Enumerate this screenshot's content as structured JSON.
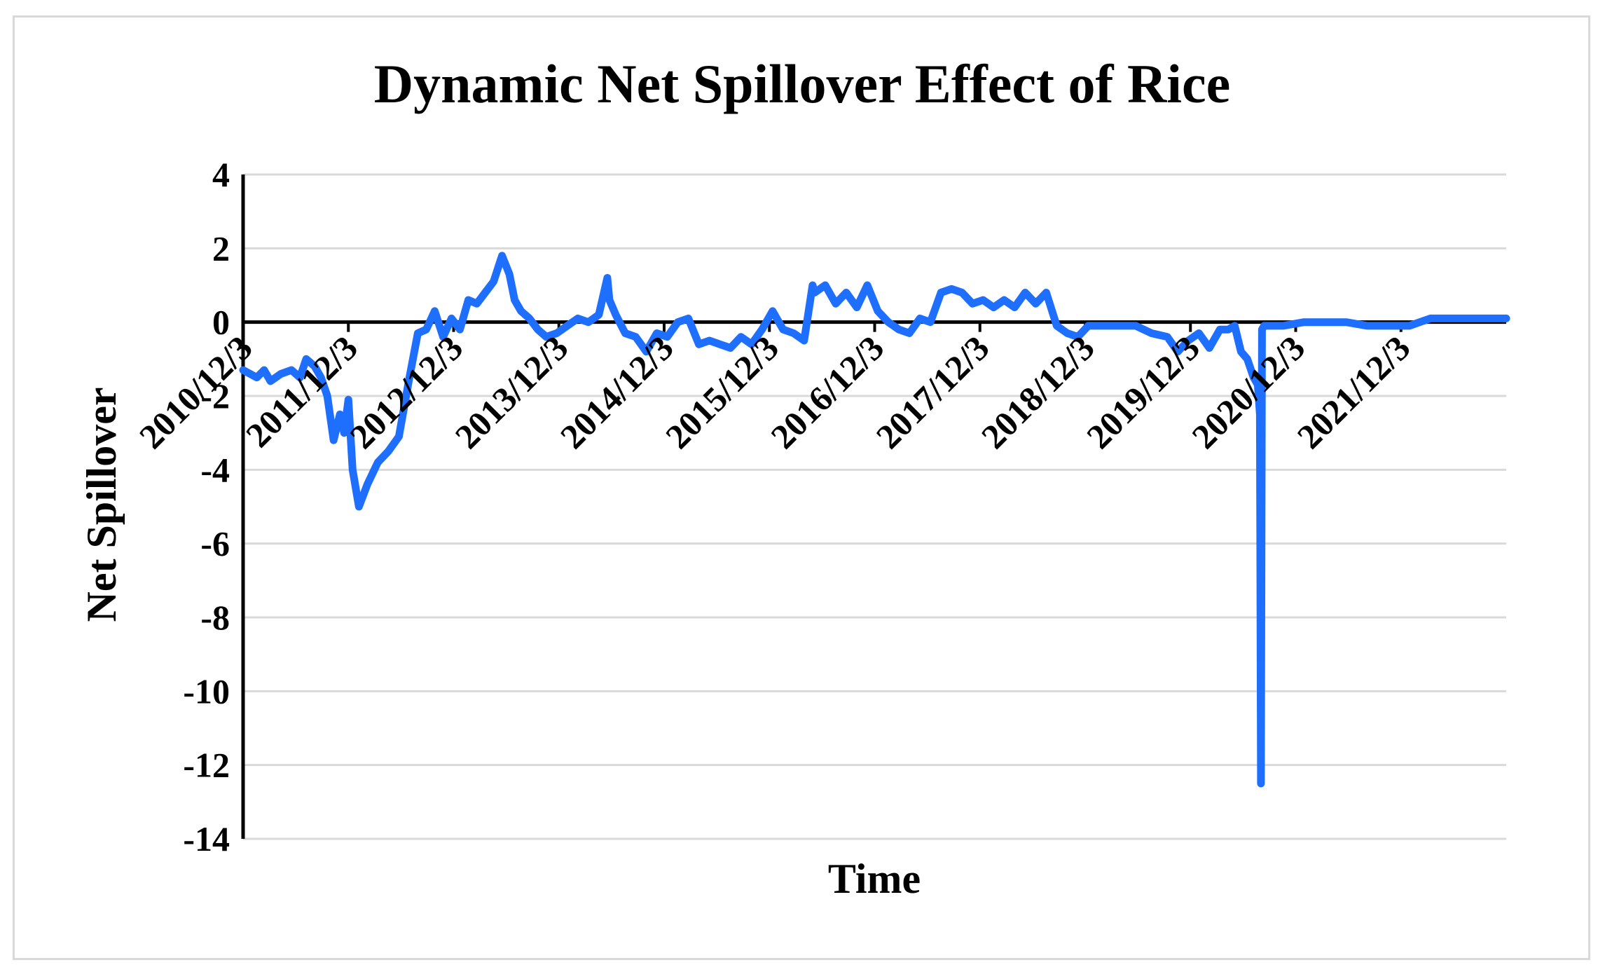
{
  "chart_data": {
    "type": "line",
    "title": "Dynamic Net Spillover Effect of Rice",
    "xlabel": "Time",
    "ylabel": "Net Spillover",
    "ylim": [
      -14,
      4
    ],
    "yticks": [
      4,
      2,
      0,
      -2,
      -4,
      -6,
      -8,
      -10,
      -12,
      -14
    ],
    "grid": true,
    "legend": "none",
    "line_color": "#1f6fff",
    "x_tick_labels": [
      "2010/12/3",
      "2011/12/3",
      "2012/12/3",
      "2013/12/3",
      "2014/12/3",
      "2015/12/3",
      "2016/12/3",
      "2017/12/3",
      "2018/12/3",
      "2019/12/3",
      "2020/12/3",
      "2021/12/3"
    ],
    "series": [
      {
        "x": [
          2010.92,
          2011.05,
          2011.12,
          2011.18,
          2011.28,
          2011.38,
          2011.46,
          2011.52,
          2011.6,
          2011.66,
          2011.72,
          2011.78,
          2011.84,
          2011.88,
          2011.92,
          2011.96,
          2012.02,
          2012.1,
          2012.2,
          2012.3,
          2012.4,
          2012.5,
          2012.58,
          2012.66,
          2012.74,
          2012.82,
          2012.9,
          2012.98,
          2013.06,
          2013.14,
          2013.22,
          2013.3,
          2013.38,
          2013.45,
          2013.5,
          2013.56,
          2013.64,
          2013.72,
          2013.8,
          2013.9,
          2014.0,
          2014.1,
          2014.2,
          2014.3,
          2014.38,
          2014.4,
          2014.46,
          2014.55,
          2014.65,
          2014.75,
          2014.85,
          2014.95,
          2015.05,
          2015.15,
          2015.25,
          2015.35,
          2015.45,
          2015.55,
          2015.65,
          2015.75,
          2015.85,
          2015.95,
          2016.05,
          2016.15,
          2016.25,
          2016.33,
          2016.35,
          2016.45,
          2016.55,
          2016.65,
          2016.75,
          2016.85,
          2016.95,
          2017.05,
          2017.15,
          2017.25,
          2017.35,
          2017.45,
          2017.55,
          2017.65,
          2017.75,
          2017.85,
          2017.95,
          2018.05,
          2018.15,
          2018.25,
          2018.35,
          2018.45,
          2018.55,
          2018.65,
          2018.75,
          2018.85,
          2018.95,
          2019.05,
          2019.2,
          2019.4,
          2019.55,
          2019.7,
          2019.8,
          2019.9,
          2020.0,
          2020.1,
          2020.2,
          2020.28,
          2020.34,
          2020.4,
          2020.46,
          2020.52,
          2020.56,
          2020.58,
          2020.59,
          2020.6,
          2020.62,
          2020.64,
          2020.8,
          2021.0,
          2021.2,
          2021.4,
          2021.6,
          2021.8,
          2022.0,
          2022.2,
          2022.4,
          2022.6,
          2022.8,
          2022.92
        ],
        "y": [
          -1.3,
          -1.5,
          -1.3,
          -1.6,
          -1.4,
          -1.3,
          -1.5,
          -1.0,
          -1.2,
          -1.5,
          -2.0,
          -3.2,
          -2.5,
          -3.0,
          -2.1,
          -4.0,
          -5.0,
          -4.4,
          -3.8,
          -3.5,
          -3.1,
          -1.5,
          -0.3,
          -0.2,
          0.3,
          -0.4,
          0.1,
          -0.2,
          0.6,
          0.5,
          0.8,
          1.1,
          1.8,
          1.3,
          0.6,
          0.3,
          0.1,
          -0.2,
          -0.4,
          -0.3,
          -0.1,
          0.1,
          0.0,
          0.2,
          1.2,
          0.6,
          0.2,
          -0.3,
          -0.4,
          -0.8,
          -0.3,
          -0.4,
          0.0,
          0.1,
          -0.6,
          -0.5,
          -0.6,
          -0.7,
          -0.4,
          -0.6,
          -0.2,
          0.3,
          -0.2,
          -0.3,
          -0.5,
          1.0,
          0.8,
          1.0,
          0.5,
          0.8,
          0.4,
          1.0,
          0.3,
          0.0,
          -0.2,
          -0.3,
          0.1,
          0.0,
          0.8,
          0.9,
          0.8,
          0.5,
          0.6,
          0.4,
          0.6,
          0.4,
          0.8,
          0.5,
          0.8,
          -0.1,
          -0.3,
          -0.4,
          -0.1,
          -0.1,
          -0.1,
          -0.1,
          -0.3,
          -0.4,
          -0.8,
          -0.5,
          -0.3,
          -0.7,
          -0.2,
          -0.2,
          -0.1,
          -0.8,
          -1.0,
          -1.5,
          -1.7,
          -2.5,
          -12.5,
          -0.2,
          -0.1,
          -0.1,
          -0.1,
          0.0,
          0.0,
          0.0,
          -0.1,
          -0.1,
          -0.1,
          0.1,
          0.1,
          0.1,
          0.1,
          0.1
        ]
      }
    ]
  }
}
